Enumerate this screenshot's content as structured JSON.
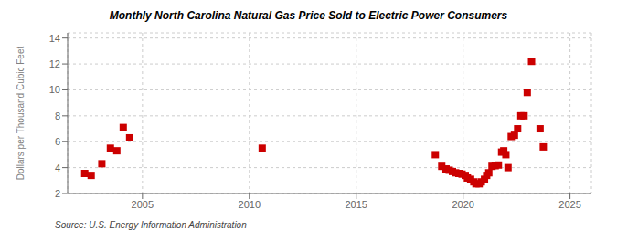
{
  "chart_data": {
    "type": "scatter",
    "title": "Monthly North Carolina Natural Gas Price Sold to Electric Power Consumers",
    "ylabel": "Dollars per Thousand Cubic Feet",
    "source": "Source: U.S. Energy Information Administration",
    "color": "#cc0000",
    "marker": "square",
    "grid": true,
    "xlim": [
      2001.5,
      2026
    ],
    "ylim": [
      2,
      14.4
    ],
    "xticks": [
      2005,
      2010,
      2015,
      2020,
      2025
    ],
    "yticks": [
      2,
      4,
      6,
      8,
      10,
      12,
      14
    ],
    "x": [
      2002.3,
      2002.6,
      2003.1,
      2003.5,
      2003.8,
      2004.1,
      2004.4,
      2010.6,
      2018.7,
      2019.0,
      2019.2,
      2019.35,
      2019.5,
      2019.65,
      2019.8,
      2019.95,
      2020.1,
      2020.2,
      2020.35,
      2020.5,
      2020.6,
      2020.75,
      2020.85,
      2021.0,
      2021.1,
      2021.2,
      2021.35,
      2021.5,
      2021.65,
      2021.8,
      2021.9,
      2022.0,
      2022.1,
      2022.25,
      2022.4,
      2022.55,
      2022.7,
      2022.85,
      2023.0,
      2023.2,
      2023.6,
      2023.75
    ],
    "values": [
      3.55,
      3.4,
      4.3,
      5.5,
      5.3,
      7.1,
      6.3,
      5.5,
      5.0,
      4.1,
      3.9,
      3.8,
      3.7,
      3.6,
      3.55,
      3.5,
      3.4,
      3.2,
      3.1,
      2.9,
      2.75,
      2.75,
      2.9,
      3.1,
      3.4,
      3.6,
      4.1,
      4.15,
      4.2,
      5.2,
      5.3,
      5.0,
      4.0,
      6.4,
      6.5,
      7.0,
      8.0,
      8.0,
      9.8,
      12.2,
      7.0,
      5.6
    ]
  }
}
